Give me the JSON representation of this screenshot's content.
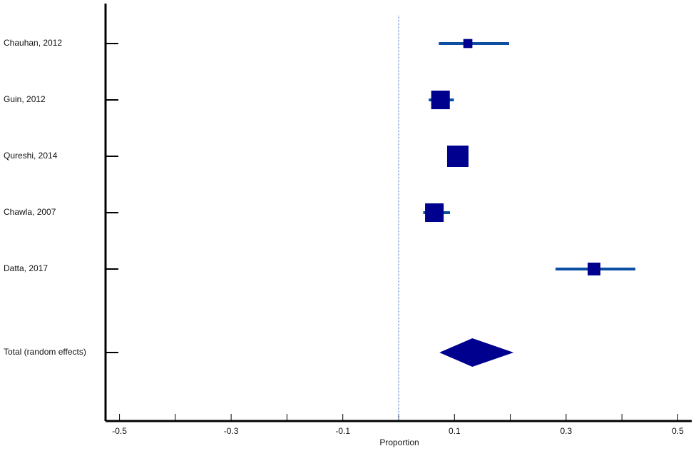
{
  "chart_data": {
    "type": "forest",
    "x_label": "Proportion",
    "xlim": [
      -0.525,
      0.525
    ],
    "xticks": [
      -0.5,
      -0.3,
      -0.1,
      0.1,
      0.3,
      0.5
    ],
    "xminor_ticks": [
      -0.4,
      -0.2,
      0,
      0.2,
      0.4
    ],
    "reference_line": 0,
    "studies": [
      "Chauhan, 2012",
      "Guin, 2012",
      "Qureshi, 2014",
      "Chawla, 2007",
      "Datta, 2017"
    ],
    "estimates": [
      0.124,
      0.075,
      0.106,
      0.064,
      0.35
    ],
    "ci_low": [
      0.072,
      0.054,
      0.09,
      0.044,
      0.281
    ],
    "ci_high": [
      0.198,
      0.099,
      0.12,
      0.092,
      0.424
    ],
    "weights": [
      8,
      34,
      45,
      34,
      16
    ],
    "total": {
      "label": "Total (random effects)",
      "estimate": 0.132,
      "ci_low": 0.073,
      "ci_high": 0.206
    },
    "box_color": "#00008f",
    "line_color": "#0b4ea2"
  }
}
